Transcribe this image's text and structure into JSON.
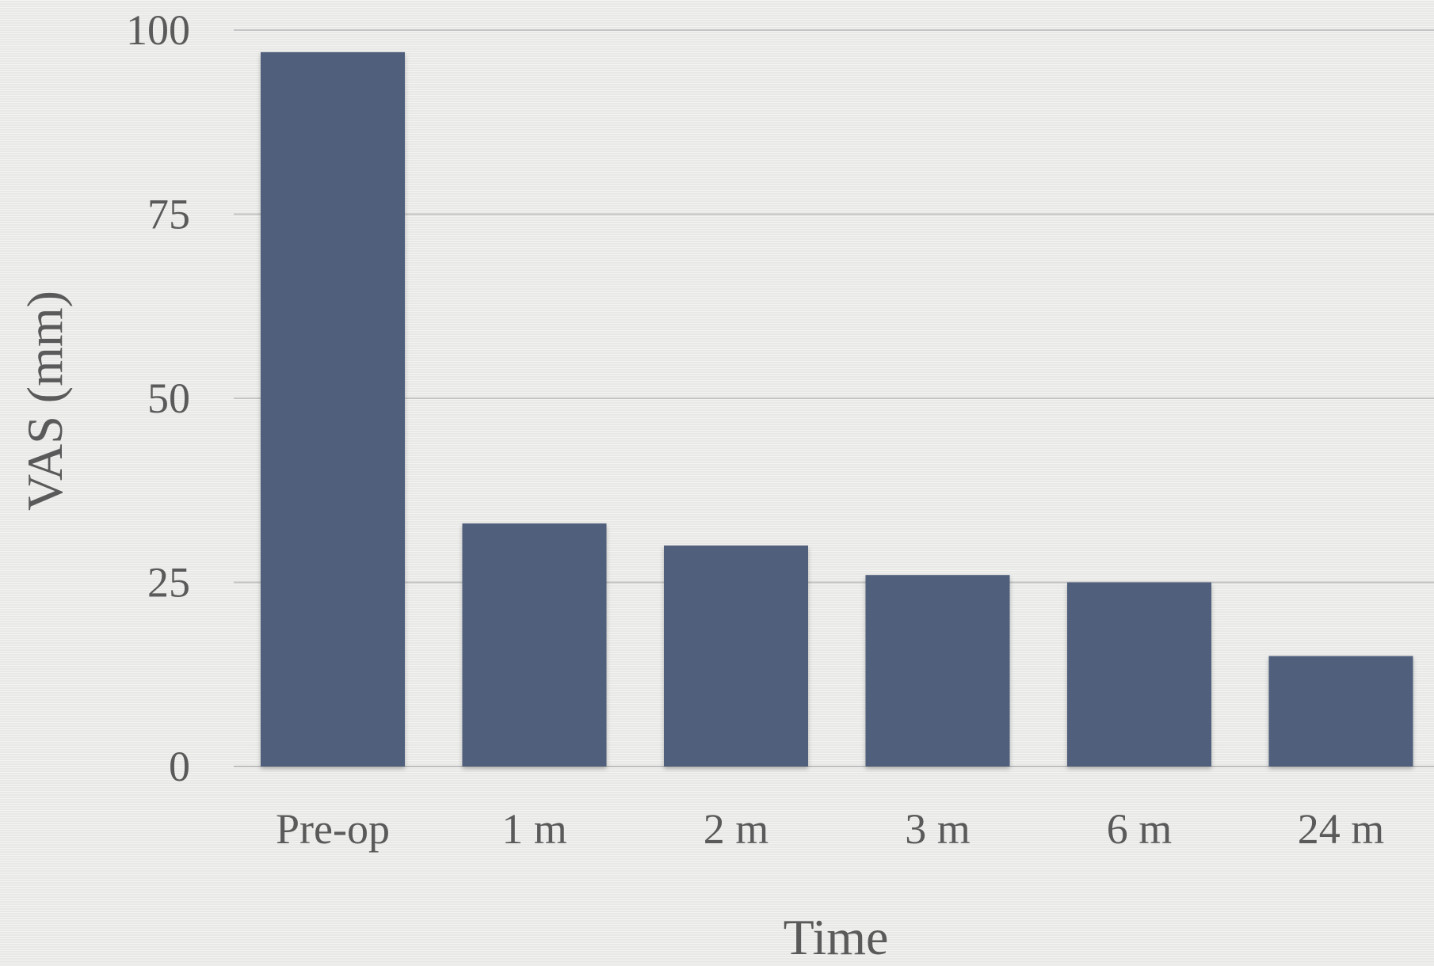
{
  "chart_data": {
    "type": "bar",
    "categories": [
      "Pre-op",
      "1 m",
      "2 m",
      "3 m",
      "6 m",
      "24 m"
    ],
    "values": [
      97,
      33,
      30,
      26,
      25,
      15
    ],
    "xlabel": "Time",
    "ylabel": "VAS (mm)",
    "ylim": [
      0,
      100
    ],
    "yticks": [
      0,
      25,
      50,
      75,
      100
    ],
    "grid": true,
    "bar_color": "#4f5f7b",
    "background_color": "#ededeb"
  }
}
